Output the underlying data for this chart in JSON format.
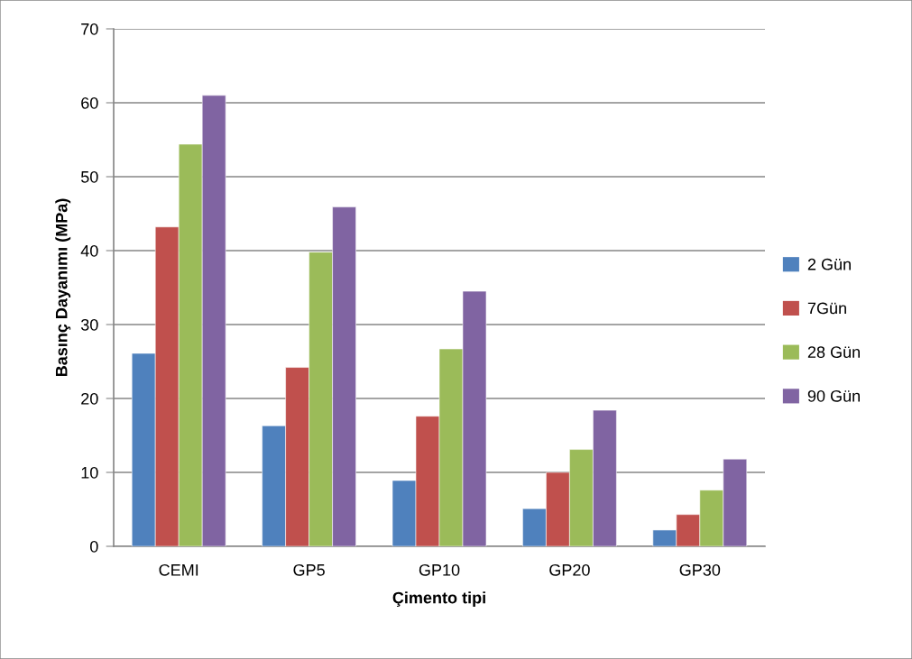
{
  "chart_data": {
    "type": "bar",
    "xlabel": "Çimento tipi",
    "ylabel": "Basınç Dayanımı (MPa)",
    "categories": [
      "CEMI",
      "GP5",
      "GP10",
      "GP20",
      "GP30"
    ],
    "series": [
      {
        "name": "2 Gün",
        "color": "#4f81bd",
        "values": [
          26.1,
          16.3,
          8.9,
          5.1,
          2.2
        ]
      },
      {
        "name": "7Gün",
        "color": "#c0504d",
        "values": [
          43.2,
          24.2,
          17.6,
          10.0,
          4.3
        ]
      },
      {
        "name": "28 Gün",
        "color": "#9bbb59",
        "values": [
          54.4,
          39.8,
          26.7,
          13.1,
          7.6
        ]
      },
      {
        "name": "90 Gün",
        "color": "#8064a2",
        "values": [
          61.0,
          45.9,
          34.5,
          18.4,
          11.8
        ]
      }
    ],
    "ylim": [
      0,
      70
    ],
    "yticks": [
      0,
      10,
      20,
      30,
      40,
      50,
      60,
      70
    ],
    "grid": "y",
    "legend": "right"
  }
}
